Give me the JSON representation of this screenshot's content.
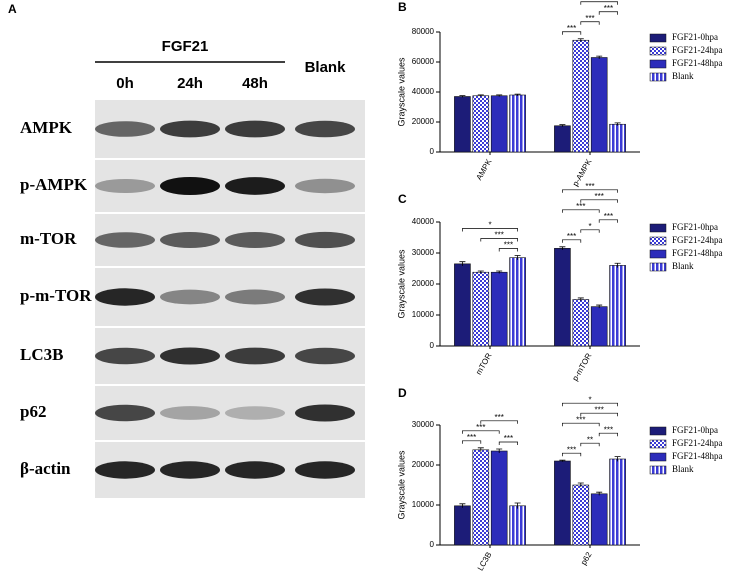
{
  "blot": {
    "panel": "A",
    "treatment": "FGF21",
    "lanes": [
      "0h",
      "24h",
      "48h",
      "Blank"
    ],
    "rows": [
      "AMPK",
      "p-AMPK",
      "m-TOR",
      "p-m-TOR",
      "LC3B",
      "p62",
      "β-actin"
    ]
  },
  "chart_data": [
    {
      "type": "bar",
      "panel": "B",
      "ylabel": "Grayscale values",
      "categories": [
        "AMPK",
        "p-AMPK"
      ],
      "series": [
        {
          "name": "FGF21-0hpa",
          "color": "#1c1c78",
          "pattern": "solid",
          "values": [
            37000,
            17500
          ],
          "errors": [
            600,
            700
          ]
        },
        {
          "name": "FGF21-24hpa",
          "color": "#3b3bd6",
          "pattern": "checker",
          "values": [
            37500,
            74500
          ],
          "errors": [
            600,
            1000
          ]
        },
        {
          "name": "FGF21-48hpa",
          "color": "#2c2cba",
          "pattern": "solid",
          "values": [
            37500,
            63000
          ],
          "errors": [
            600,
            900
          ]
        },
        {
          "name": "Blank",
          "color": "#3b3bd6",
          "pattern": "stripes",
          "values": [
            38000,
            18500
          ],
          "errors": [
            600,
            900
          ]
        }
      ],
      "ylim": [
        0,
        80000
      ],
      "yticks": [
        0,
        20000,
        40000,
        60000,
        80000
      ],
      "comparisons": [
        {
          "category": 1,
          "groups": [
            1,
            3
          ],
          "label": "***"
        },
        {
          "category": 1,
          "groups": [
            0,
            2
          ],
          "label": "***"
        },
        {
          "category": 1,
          "groups": [
            0,
            1
          ],
          "label": "***"
        },
        {
          "category": 1,
          "groups": [
            1,
            2
          ],
          "label": "***"
        },
        {
          "category": 1,
          "groups": [
            2,
            3
          ],
          "label": "***"
        }
      ]
    },
    {
      "type": "bar",
      "panel": "C",
      "ylabel": "Grayscale values",
      "categories": [
        "mTOR",
        "p-mTOR"
      ],
      "series": [
        {
          "name": "FGF21-0hpa",
          "color": "#1c1c78",
          "pattern": "solid",
          "values": [
            26500,
            31500
          ],
          "errors": [
            700,
            500
          ]
        },
        {
          "name": "FGF21-24hpa",
          "color": "#3b3bd6",
          "pattern": "checker",
          "values": [
            23800,
            15000
          ],
          "errors": [
            400,
            500
          ]
        },
        {
          "name": "FGF21-48hpa",
          "color": "#2c2cba",
          "pattern": "solid",
          "values": [
            23800,
            12700
          ],
          "errors": [
            400,
            500
          ]
        },
        {
          "name": "Blank",
          "color": "#3b3bd6",
          "pattern": "stripes",
          "values": [
            28500,
            26000
          ],
          "errors": [
            700,
            700
          ]
        }
      ],
      "ylim": [
        0,
        40000
      ],
      "yticks": [
        0,
        10000,
        20000,
        30000,
        40000
      ],
      "comparisons": [
        {
          "category": 0,
          "groups": [
            0,
            3
          ],
          "label": "*"
        },
        {
          "category": 0,
          "groups": [
            1,
            3
          ],
          "label": "***"
        },
        {
          "category": 0,
          "groups": [
            2,
            3
          ],
          "label": "***"
        },
        {
          "category": 1,
          "groups": [
            0,
            3
          ],
          "label": "***"
        },
        {
          "category": 1,
          "groups": [
            0,
            2
          ],
          "label": "***"
        },
        {
          "category": 1,
          "groups": [
            0,
            1
          ],
          "label": "***"
        },
        {
          "category": 1,
          "groups": [
            1,
            3
          ],
          "label": "***"
        },
        {
          "category": 1,
          "groups": [
            1,
            2
          ],
          "label": "*"
        },
        {
          "category": 1,
          "groups": [
            2,
            3
          ],
          "label": "***"
        }
      ]
    },
    {
      "type": "bar",
      "panel": "D",
      "ylabel": "Grayscale values",
      "categories": [
        "LC3B",
        "p62"
      ],
      "series": [
        {
          "name": "FGF21-0hpa",
          "color": "#1c1c78",
          "pattern": "solid",
          "values": [
            9800,
            21000
          ],
          "errors": [
            500,
            200
          ]
        },
        {
          "name": "FGF21-24hpa",
          "color": "#3b3bd6",
          "pattern": "checker",
          "values": [
            23800,
            15000
          ],
          "errors": [
            500,
            500
          ]
        },
        {
          "name": "FGF21-48hpa",
          "color": "#2c2cba",
          "pattern": "solid",
          "values": [
            23500,
            12800
          ],
          "errors": [
            500,
            400
          ]
        },
        {
          "name": "Blank",
          "color": "#3b3bd6",
          "pattern": "stripes",
          "values": [
            9800,
            21500
          ],
          "errors": [
            700,
            600
          ]
        }
      ],
      "ylim": [
        0,
        30000
      ],
      "yticks": [
        0,
        10000,
        20000,
        30000
      ],
      "comparisons": [
        {
          "category": 0,
          "groups": [
            0,
            2
          ],
          "label": "***"
        },
        {
          "category": 0,
          "groups": [
            0,
            1
          ],
          "label": "***"
        },
        {
          "category": 0,
          "groups": [
            1,
            3
          ],
          "label": "***"
        },
        {
          "category": 0,
          "groups": [
            2,
            3
          ],
          "label": "***"
        },
        {
          "category": 1,
          "groups": [
            0,
            3
          ],
          "label": "*"
        },
        {
          "category": 1,
          "groups": [
            0,
            2
          ],
          "label": "***"
        },
        {
          "category": 1,
          "groups": [
            0,
            1
          ],
          "label": "***"
        },
        {
          "category": 1,
          "groups": [
            1,
            3
          ],
          "label": "***"
        },
        {
          "category": 1,
          "groups": [
            1,
            2
          ],
          "label": "**"
        },
        {
          "category": 1,
          "groups": [
            2,
            3
          ],
          "label": "***"
        }
      ]
    }
  ]
}
